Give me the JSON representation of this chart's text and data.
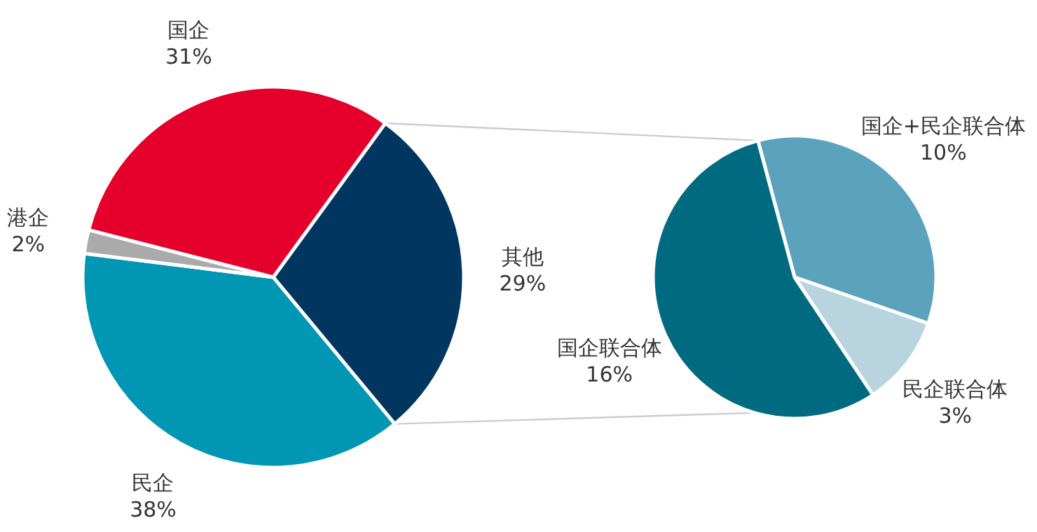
{
  "chart_data": [
    {
      "type": "pie",
      "categories": [
        "其他",
        "民企",
        "港企",
        "国企"
      ],
      "values": [
        29,
        38,
        2,
        31
      ],
      "colors": [
        "#003660",
        "#0096b4",
        "#aaaaaa",
        "#e4002b"
      ],
      "value_labels": [
        "29%",
        "38%",
        "2%",
        "31%"
      ]
    },
    {
      "type": "pie",
      "categories": [
        "国企+民企联合体",
        "民企联合体",
        "国企联合体"
      ],
      "values": [
        10,
        3,
        16
      ],
      "colors": [
        "#5ba3bd",
        "#b8d4de",
        "#006a80"
      ],
      "value_labels": [
        "10%",
        "3%",
        "16%"
      ]
    }
  ]
}
